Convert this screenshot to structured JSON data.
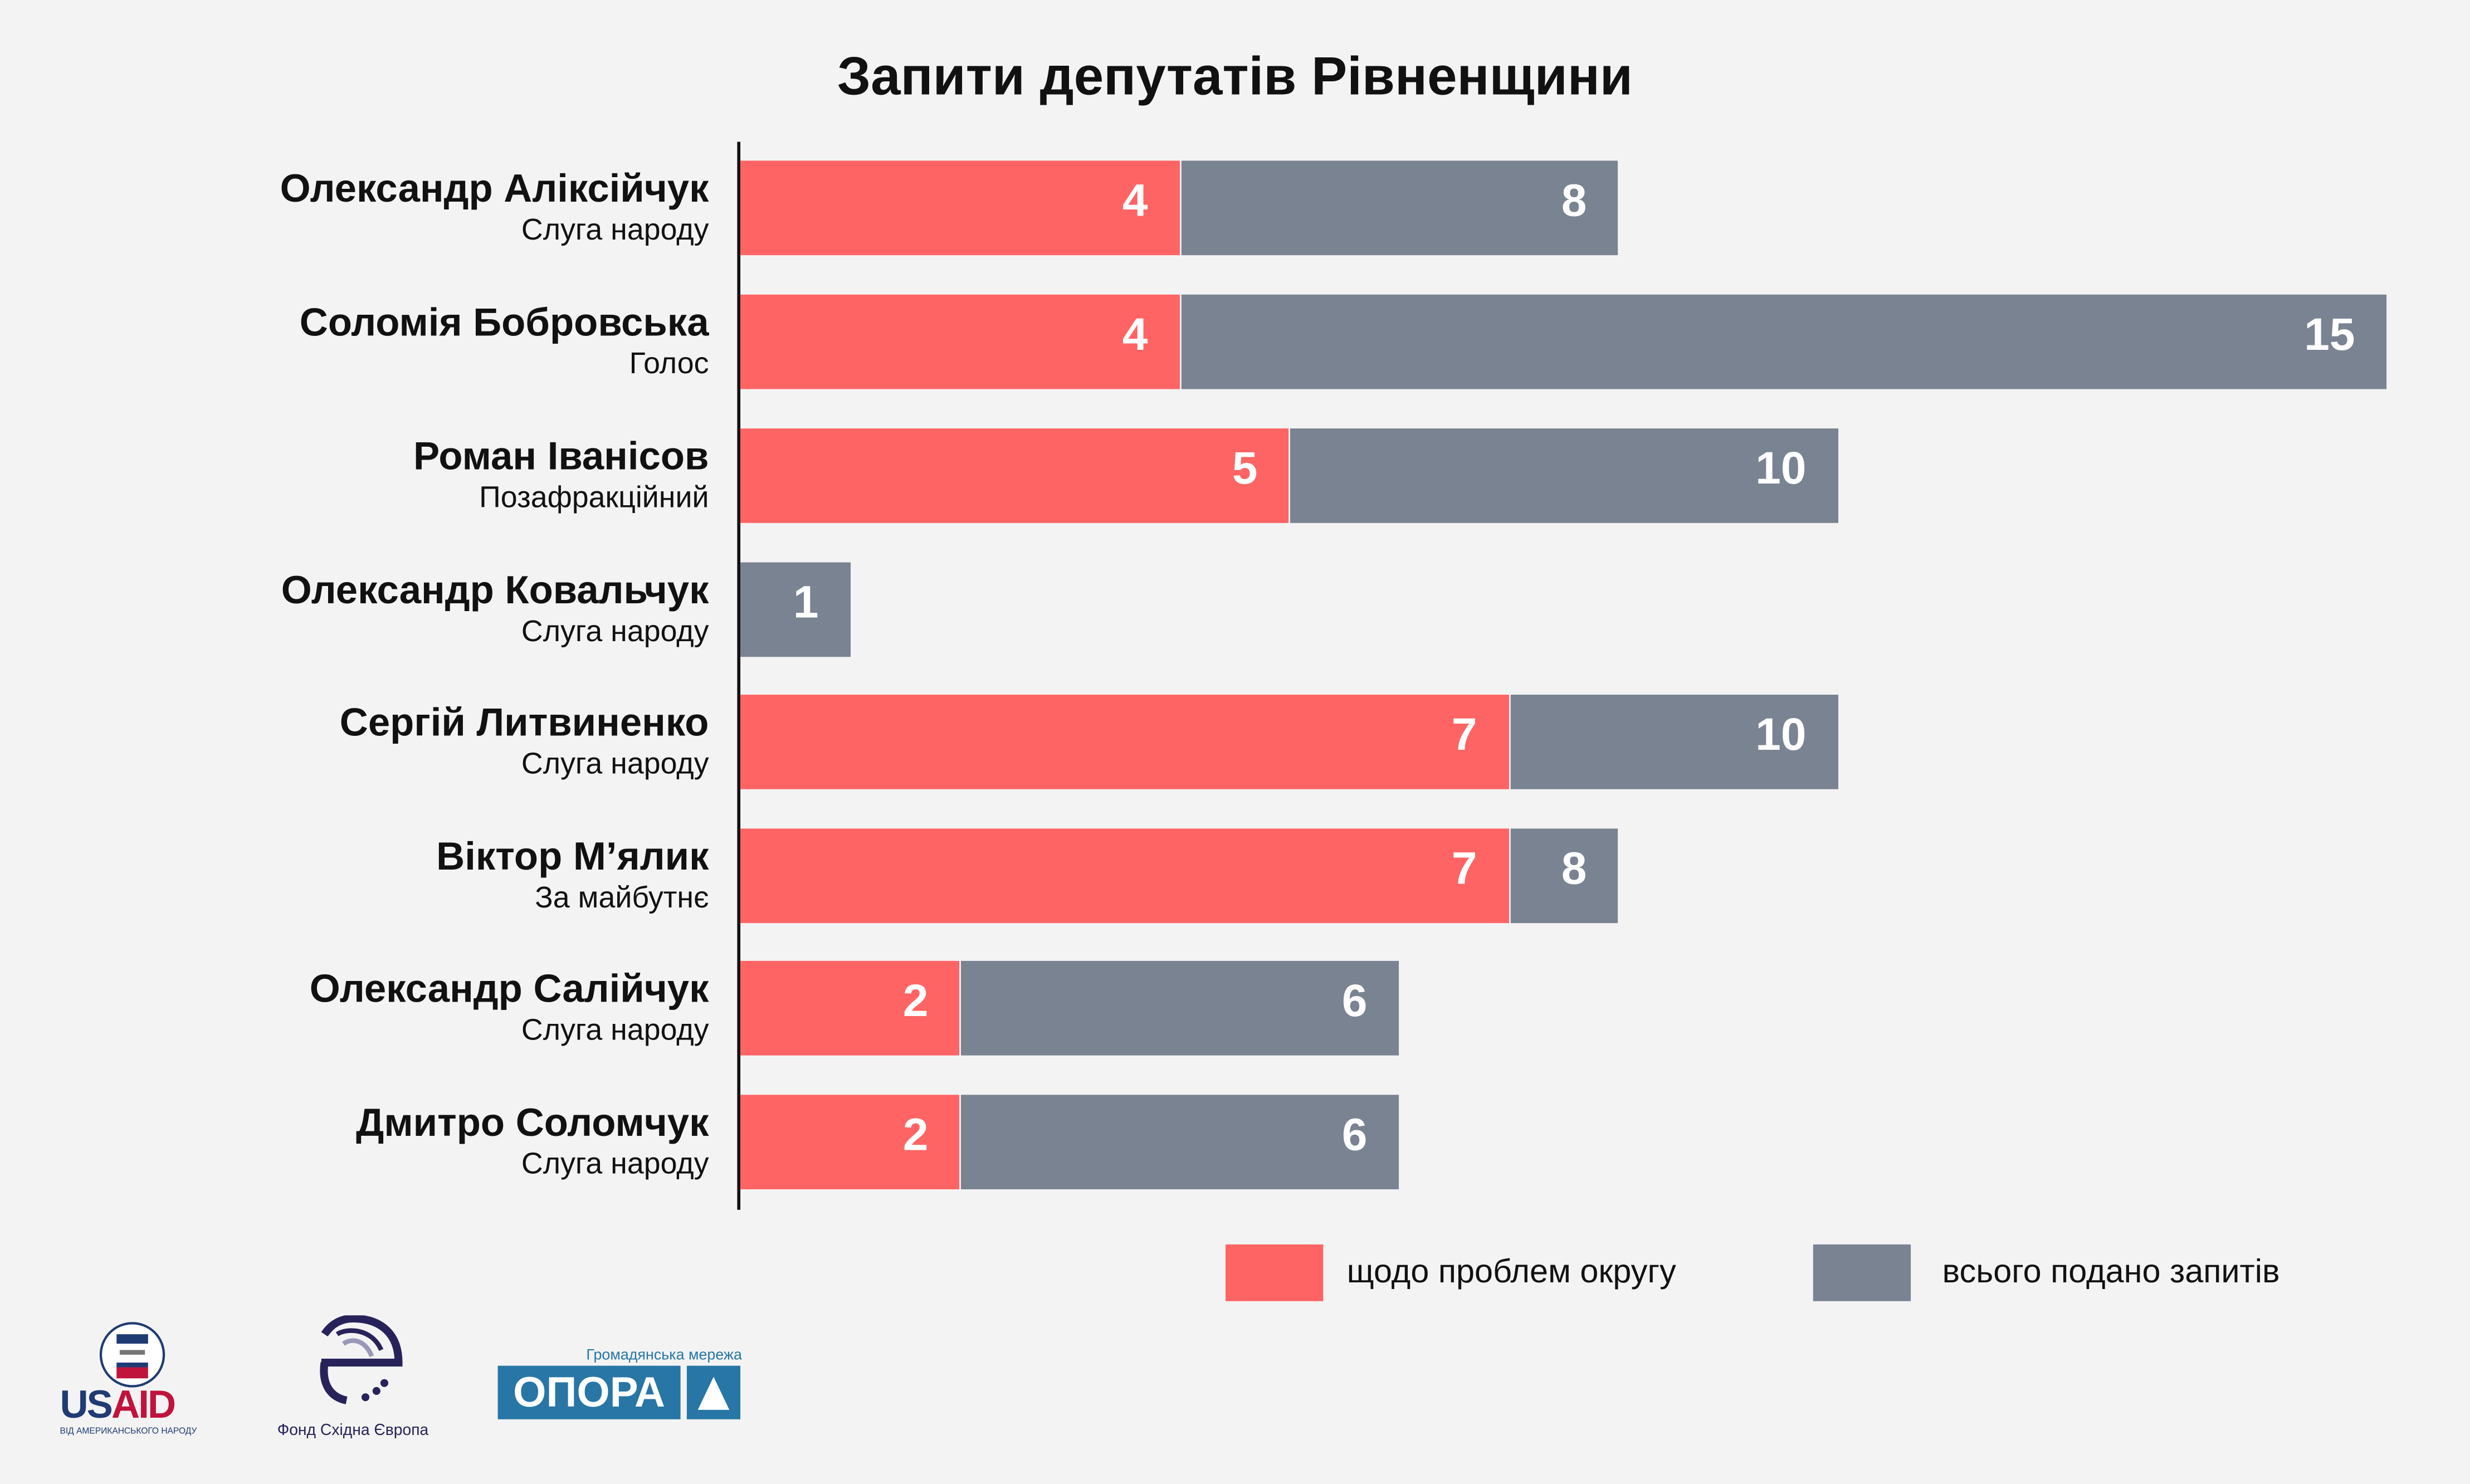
{
  "chart_data": {
    "type": "bar",
    "orientation": "horizontal",
    "stacked": "overlay",
    "title": "Запити депутатів Рівненщини",
    "categories": [
      {
        "name": "Олександр Аліксійчук",
        "party": "Слуга народу"
      },
      {
        "name": "Соломія Бобровська",
        "party": "Голос"
      },
      {
        "name": "Роман Іванісов",
        "party": "Позафракційний"
      },
      {
        "name": "Олександр Ковальчук",
        "party": "Слуга народу"
      },
      {
        "name": "Сергій Литвиненко",
        "party": "Слуга народу"
      },
      {
        "name": "Віктор М’ялик",
        "party": "За майбутнє"
      },
      {
        "name": "Олександр Салійчук",
        "party": "Слуга народу"
      },
      {
        "name": "Дмитро Соломчук",
        "party": "Слуга народу"
      }
    ],
    "series": [
      {
        "name": "щодо проблем округу",
        "color": "#ff6464",
        "values": [
          4,
          4,
          5,
          0,
          7,
          7,
          2,
          2
        ]
      },
      {
        "name": "всього подано запитів",
        "color": "#798392",
        "values": [
          8,
          15,
          10,
          1,
          10,
          8,
          6,
          6
        ]
      }
    ],
    "xlim": [
      0,
      15
    ],
    "grid": false,
    "legend_position": "bottom-right"
  },
  "logos": {
    "usaid": "USAID",
    "usaid_sub": "ВІД АМЕРИКАНСЬКОГО НАРОДУ",
    "fund": "Фонд Східна Європа",
    "opora_top": "Громадянська мережа",
    "opora": "ОПОРА"
  }
}
